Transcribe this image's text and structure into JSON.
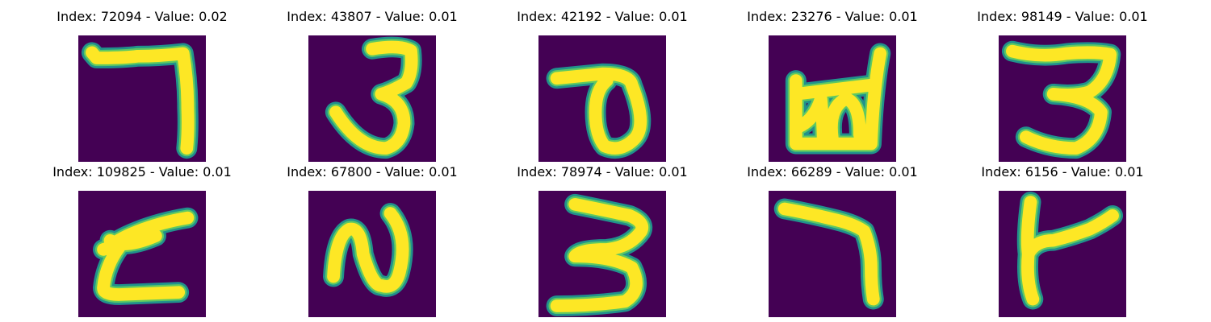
{
  "colors": {
    "background": "#440154",
    "halo": "#21918c",
    "stroke_mid": "#5ec962",
    "stroke_core": "#fde725"
  },
  "figure": {
    "panels": [
      {
        "title": "Index: 72094 - Value: 0.02"
      },
      {
        "title": "Index: 43807 - Value: 0.01"
      },
      {
        "title": "Index: 42192 - Value: 0.01"
      },
      {
        "title": "Index: 23276 - Value: 0.01"
      },
      {
        "title": "Index: 98149 - Value: 0.01"
      },
      {
        "title": "Index: 109825 - Value: 0.01"
      },
      {
        "title": "Index: 67800 - Value: 0.01"
      },
      {
        "title": "Index: 78974 - Value: 0.01"
      },
      {
        "title": "Index: 66289 - Value: 0.01"
      },
      {
        "title": "Index: 6156 - Value: 0.01"
      }
    ]
  }
}
